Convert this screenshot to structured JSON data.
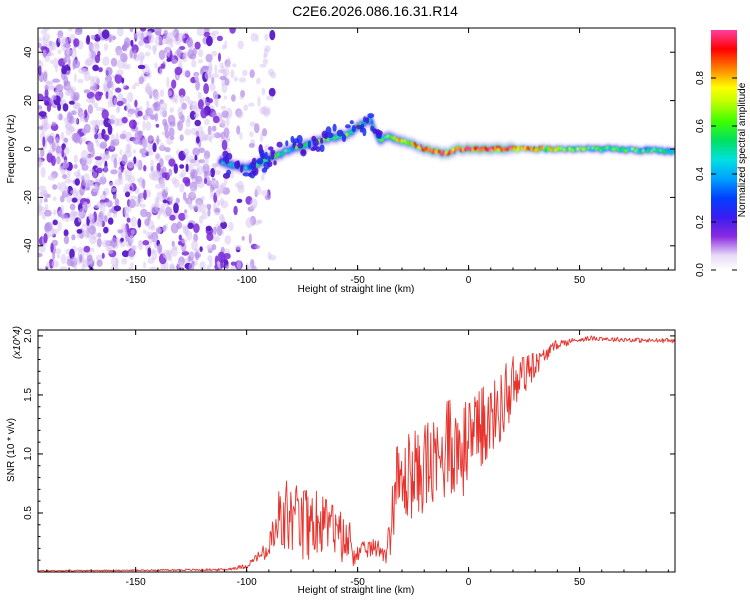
{
  "title": "C2E6.2026.086.16.31.R14",
  "chart_data": [
    {
      "type": "heatmap",
      "xlabel": "Height of straight line (km)",
      "ylabel": "Frequency (Hz)",
      "xlim": [
        -194,
        93
      ],
      "ylim": [
        -50,
        50
      ],
      "xticks": [
        -150,
        -100,
        -50,
        0,
        50
      ],
      "yticks": [
        -40,
        -20,
        0,
        20,
        40
      ],
      "colorbar": {
        "label": "Normalized spectral amplitude",
        "range": [
          0,
          1
        ],
        "ticks": [
          "0.0",
          "0.2",
          "0.4",
          "0.6",
          "0.8"
        ]
      },
      "ridge": {
        "x": [
          -112,
          -105,
          -100,
          -95,
          -90,
          -85,
          -80,
          -75,
          -70,
          -65,
          -60,
          -55,
          -50,
          -46,
          -44,
          -42,
          -40,
          -35,
          -30,
          -25,
          -20,
          -15,
          -10,
          -5,
          0,
          10,
          20,
          40,
          60,
          93
        ],
        "y": [
          -5,
          -7,
          -8,
          -6,
          -4,
          -2,
          0,
          1,
          3,
          4,
          5,
          6,
          9,
          11,
          12,
          7,
          4,
          5,
          3,
          2,
          0,
          -1,
          -2,
          0,
          0,
          0,
          0,
          0,
          0,
          -1
        ],
        "amplitude": [
          0.35,
          0.4,
          0.45,
          0.45,
          0.45,
          0.5,
          0.5,
          0.55,
          0.55,
          0.6,
          0.55,
          0.6,
          0.55,
          0.5,
          0.45,
          0.45,
          0.5,
          0.6,
          0.7,
          0.75,
          0.85,
          0.9,
          0.9,
          0.85,
          0.95,
          0.9,
          0.85,
          0.65,
          0.55,
          0.5
        ]
      },
      "noise_region_x": [
        -194,
        -100
      ]
    },
    {
      "type": "line",
      "xlabel": "Height of straight line (km)",
      "ylabel": "SNR (10 * v/v)",
      "y_multiplier": "(x10^4)",
      "xlim": [
        -194,
        93
      ],
      "ylim": [
        0,
        2.05
      ],
      "xticks": [
        -150,
        -100,
        -50,
        0,
        50
      ],
      "yticks": [
        "0.5",
        "1.0",
        "1.5",
        "2.0"
      ],
      "series": [
        {
          "name": "SNR",
          "color": "#e8322c",
          "x": [
            -194,
            -150,
            -110,
            -100,
            -97,
            -95,
            -90,
            -87,
            -85,
            -82,
            -80,
            -75,
            -70,
            -65,
            -60,
            -55,
            -52,
            -50,
            -45,
            -40,
            -37,
            -35,
            -33,
            -30,
            -25,
            -20,
            -15,
            -10,
            -5,
            0,
            5,
            10,
            15,
            20,
            25,
            30,
            35,
            40,
            45,
            50,
            55,
            60,
            65,
            70,
            80,
            93
          ],
          "y": [
            0.01,
            0.015,
            0.02,
            0.05,
            0.1,
            0.13,
            0.18,
            0.3,
            0.4,
            0.42,
            0.45,
            0.35,
            0.4,
            0.35,
            0.3,
            0.25,
            0.2,
            0.15,
            0.2,
            0.2,
            0.15,
            0.35,
            0.7,
            0.75,
            0.8,
            0.85,
            0.9,
            1.0,
            1.05,
            1.0,
            1.15,
            1.3,
            1.4,
            1.55,
            1.65,
            1.75,
            1.85,
            1.93,
            1.95,
            1.97,
            1.98,
            1.98,
            1.97,
            1.97,
            1.96,
            1.96
          ],
          "spread": [
            0.005,
            0.005,
            0.01,
            0.02,
            0.03,
            0.04,
            0.1,
            0.22,
            0.3,
            0.32,
            0.3,
            0.3,
            0.28,
            0.25,
            0.22,
            0.2,
            0.15,
            0.08,
            0.08,
            0.08,
            0.08,
            0.2,
            0.3,
            0.35,
            0.35,
            0.35,
            0.38,
            0.4,
            0.4,
            0.38,
            0.35,
            0.3,
            0.3,
            0.25,
            0.15,
            0.1,
            0.06,
            0.04,
            0.03,
            0.02,
            0.02,
            0.02,
            0.02,
            0.02,
            0.02,
            0.02
          ]
        }
      ]
    }
  ]
}
